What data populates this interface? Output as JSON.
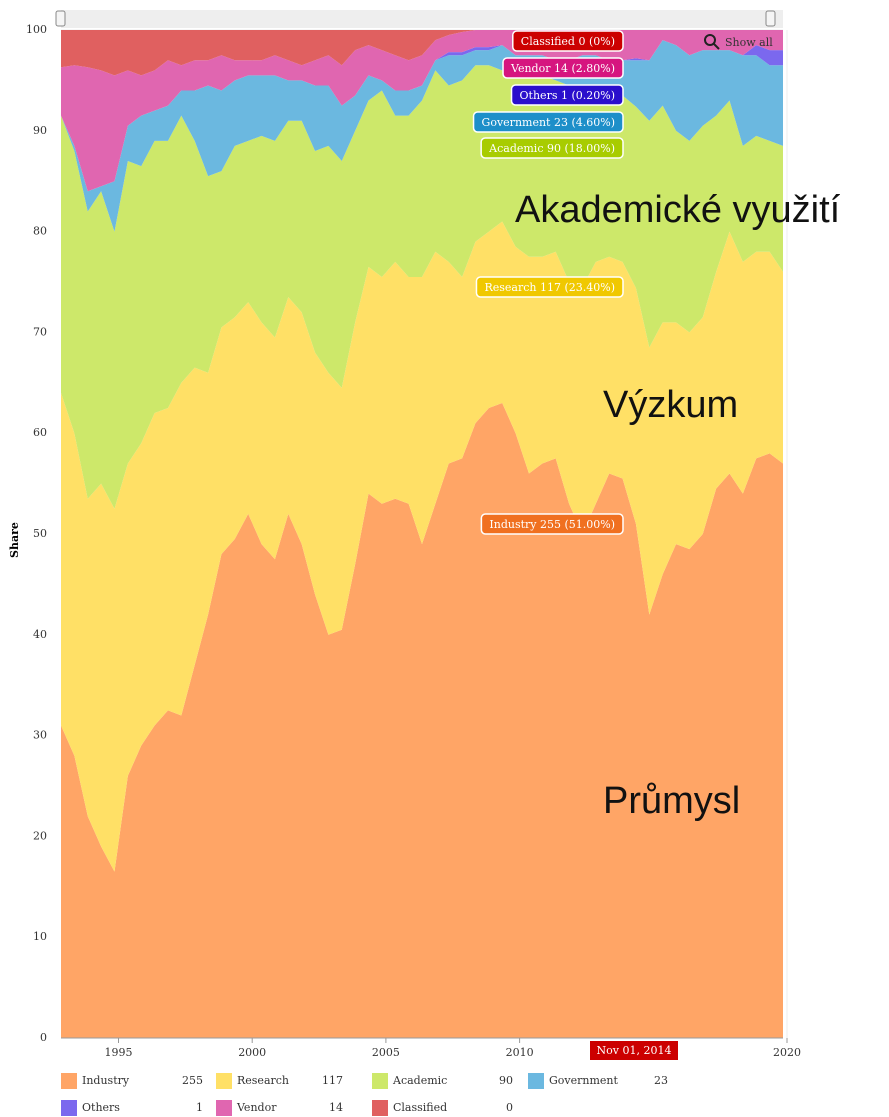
{
  "chart_data": {
    "type": "area",
    "stacked": true,
    "y_label": "Share",
    "zoom_button": "Show all",
    "annotations": [
      "Akademické využití",
      "Výzkum",
      "Průmysl"
    ],
    "tooltip_date": "Nov 01, 2014",
    "grid": true,
    "xlim": [
      1992.85,
      2019.85
    ],
    "xticks": [
      1995,
      2000,
      2005,
      2010,
      2020
    ],
    "ylim": [
      0,
      100
    ],
    "yticks": [
      0,
      10,
      20,
      30,
      40,
      50,
      60,
      70,
      80,
      90,
      100
    ],
    "x": [
      1992.85,
      1993.35,
      1993.85,
      1994.35,
      1994.85,
      1995.35,
      1995.85,
      1996.35,
      1996.85,
      1997.35,
      1997.85,
      1998.35,
      1998.85,
      1999.35,
      1999.85,
      2000.35,
      2000.85,
      2001.35,
      2001.85,
      2002.35,
      2002.85,
      2003.35,
      2003.85,
      2004.35,
      2004.85,
      2005.35,
      2005.85,
      2006.35,
      2006.85,
      2007.35,
      2007.85,
      2008.35,
      2008.85,
      2009.35,
      2009.85,
      2010.35,
      2010.85,
      2011.35,
      2011.85,
      2012.35,
      2012.85,
      2013.35,
      2013.85,
      2014.35,
      2014.85,
      2015.35,
      2015.85,
      2016.35,
      2016.85,
      2017.35,
      2017.85,
      2018.35,
      2018.85,
      2019.35,
      2019.85
    ],
    "series": [
      {
        "name": "Industry",
        "count": 255,
        "color": "#ffa566",
        "tooltip_color": "#f07020",
        "tooltip_label": "Industry 255 (51.00%)",
        "values": [
          31,
          28,
          22,
          19,
          16.5,
          26,
          29,
          31,
          32.5,
          32,
          37,
          42,
          48,
          49.5,
          52,
          49,
          47.5,
          52,
          49,
          44,
          40,
          40.5,
          47,
          54,
          53,
          53.5,
          53,
          49,
          53,
          57,
          57.5,
          61,
          62.5,
          63,
          60,
          56,
          57,
          57.5,
          53,
          50,
          53,
          56,
          55.5,
          51,
          42,
          46,
          49,
          48.5,
          50,
          54.5,
          56,
          54,
          57.5,
          58,
          57
        ]
      },
      {
        "name": "Research",
        "count": 117,
        "color": "#ffe066",
        "tooltip_color": "#f0c800",
        "tooltip_label": "Research 117 (23.40%)",
        "values": [
          33,
          32,
          31.5,
          36,
          36,
          31,
          30,
          31,
          30,
          33,
          29.5,
          24,
          22.5,
          22,
          21,
          22,
          22,
          21.5,
          23,
          24,
          26,
          24,
          24,
          22.5,
          22.5,
          23.5,
          22.5,
          26.5,
          25,
          20,
          18,
          18,
          17.5,
          18,
          18.5,
          21.5,
          20.5,
          20.5,
          22,
          24.5,
          24,
          21.5,
          21.5,
          23.4,
          26.5,
          25,
          22,
          21.5,
          21.5,
          21.5,
          24,
          23,
          20.5,
          20,
          19
        ]
      },
      {
        "name": "Academic",
        "count": 90,
        "color": "#cde86a",
        "tooltip_color": "#a8cc00",
        "tooltip_label": "Academic 90 (18.00%)",
        "values": [
          27.5,
          28,
          28.5,
          29,
          27.5,
          30,
          27.5,
          27,
          26.5,
          26.5,
          22.5,
          19.5,
          15.5,
          17,
          16,
          18.5,
          19.5,
          17.5,
          19,
          20,
          22.5,
          22.5,
          19,
          16.5,
          18.5,
          14.5,
          16,
          17.5,
          18,
          17.5,
          19.5,
          17.5,
          16.5,
          15,
          18,
          18.5,
          18,
          17,
          19.5,
          18.5,
          16.5,
          16.5,
          16.5,
          18,
          22.5,
          21.5,
          19,
          19,
          19,
          15.5,
          13,
          11.5,
          11.5,
          11,
          12.5
        ]
      },
      {
        "name": "Government",
        "count": 23,
        "color": "#6bb8e0",
        "tooltip_color": "#1d8fc9",
        "tooltip_label": "Government 23 (4.60%)",
        "values": [
          0,
          0.5,
          2,
          0.5,
          5,
          3.5,
          5,
          3,
          3.5,
          2.5,
          5,
          9,
          8,
          6.5,
          6.5,
          6,
          6.5,
          4,
          4,
          6.5,
          6,
          5.5,
          3.5,
          2.5,
          1,
          2.5,
          2.5,
          1.5,
          1,
          3,
          2.5,
          1.5,
          1.5,
          2.5,
          1,
          1.5,
          2,
          2,
          2.5,
          4.5,
          4,
          3,
          3.5,
          4.6,
          6,
          6.5,
          8.5,
          8.5,
          7.5,
          6.5,
          5,
          9,
          8,
          7.5,
          8
        ]
      },
      {
        "name": "Others",
        "count": 1,
        "color": "#7b68ee",
        "tooltip_color": "#2a0fcc",
        "tooltip_label": "Others 1 (0.20%)",
        "values": [
          0,
          0,
          0,
          0,
          0,
          0,
          0,
          0,
          0,
          0,
          0,
          0,
          0,
          0,
          0,
          0,
          0,
          0,
          0,
          0,
          0,
          0,
          0,
          0,
          0,
          0,
          0,
          0,
          0,
          0.3,
          0.3,
          0.3,
          0.3,
          0,
          0,
          0,
          0,
          0,
          0,
          0,
          0,
          0,
          0,
          0.2,
          0,
          0,
          0,
          0,
          0,
          0,
          0,
          0,
          1,
          1.5,
          1.5
        ]
      },
      {
        "name": "Vendor",
        "count": 14,
        "color": "#e066b0",
        "tooltip_color": "#d6157f",
        "tooltip_label": "Vendor 14 (2.80%)",
        "values": [
          4.8,
          8,
          12.3,
          11.5,
          10.5,
          5.5,
          4,
          4,
          4.5,
          2.5,
          3,
          2.5,
          3.5,
          2,
          1.5,
          1.5,
          2,
          2,
          1.5,
          2.5,
          3,
          4,
          4.5,
          3,
          3,
          3.5,
          3,
          3,
          2,
          1.7,
          2,
          1.7,
          1.7,
          1.5,
          2.5,
          2.5,
          2.5,
          3,
          3,
          2.5,
          2.5,
          3,
          3,
          2.8,
          3,
          1,
          1.5,
          2.5,
          2,
          2,
          2,
          2.5,
          1.5,
          2,
          2
        ]
      },
      {
        "name": "Classified",
        "count": 0,
        "color": "#e06060",
        "tooltip_color": "#cc0000",
        "tooltip_label": "Classified 0 (0%)",
        "values": [
          3.7,
          3.5,
          3.7,
          4,
          4.5,
          4,
          4.5,
          4,
          3,
          3.5,
          3,
          3,
          2.5,
          3,
          3,
          3,
          2.5,
          3,
          3.5,
          3,
          2.5,
          3.5,
          2,
          1.5,
          2,
          2.5,
          3,
          2.5,
          1,
          0.5,
          0.2,
          0,
          0,
          0,
          0,
          0,
          0,
          0,
          0,
          0,
          0,
          0,
          0,
          0,
          0,
          0,
          0,
          0,
          0,
          0,
          0,
          0,
          0,
          0,
          0
        ]
      }
    ]
  }
}
